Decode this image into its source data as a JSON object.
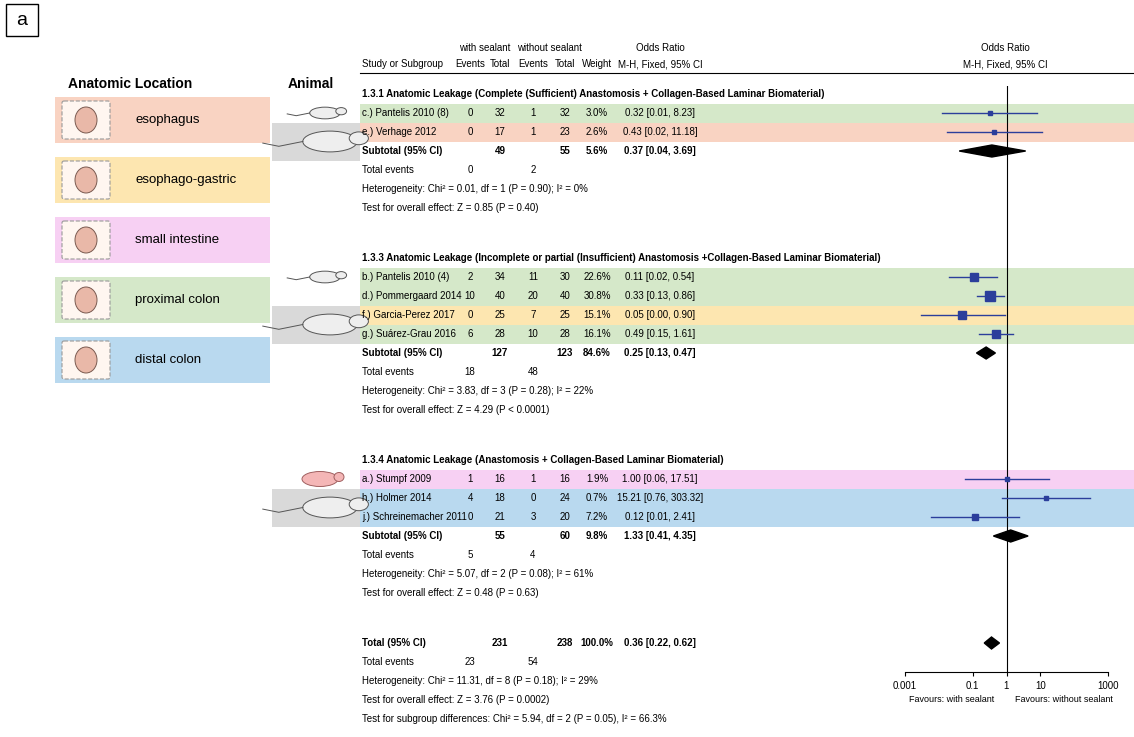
{
  "panel_label": "a",
  "anatomic_location": {
    "header": "Anatomic Location",
    "items": [
      {
        "name": "esophagus",
        "color": "#f9d3c2"
      },
      {
        "name": "esophago-gastric",
        "color": "#fde6b0"
      },
      {
        "name": "small intestine",
        "color": "#f7d0f3"
      },
      {
        "name": "proximal colon",
        "color": "#d5e8c9"
      },
      {
        "name": "distal colon",
        "color": "#b9d9ef"
      }
    ]
  },
  "animal_header": "Animal",
  "table_header": {
    "groups": [
      "with sealant",
      "without sealant",
      "Odds Ratio"
    ],
    "columns": [
      "Study or Subgroup",
      "Events",
      "Total",
      "Events",
      "Total",
      "Weight",
      "M-H, Fixed, 95% CI"
    ],
    "plot_header": [
      "Odds Ratio",
      "M-H, Fixed, 95% CI"
    ]
  },
  "chart_data": {
    "type": "forest",
    "log": "x",
    "xlim": [
      0.001,
      1000
    ],
    "xticks": [
      0.001,
      0.1,
      1,
      10,
      1000
    ],
    "null_line": 1,
    "color": "#2b3e9b",
    "favours": [
      "Favours: with sealant",
      "Favours: without sealant"
    ],
    "sections": [
      {
        "title": "1.3.1 Anatomic Leakage (Complete (Sufficient) Anastomosis + Collagen-Based Laminar Biomaterial)",
        "studies": [
          {
            "label": "c.) Pantelis 2010 (8)",
            "location": "proximal colon",
            "events_with": 0,
            "total_with": 32,
            "events_without": 1,
            "total_without": 32,
            "weight": 3.0,
            "weight_label": "3.0%",
            "or": 0.32,
            "ci": [
              0.012,
              8.23
            ],
            "or_label": "0.32 [0.01, 8.23]"
          },
          {
            "label": "e.) Verhage 2012",
            "location": "esophagus",
            "events_with": 0,
            "total_with": 17,
            "events_without": 1,
            "total_without": 23,
            "weight": 2.6,
            "weight_label": "2.6%",
            "or": 0.43,
            "ci": [
              0.017,
              11.18
            ],
            "or_label": "0.43 [0.02, 11.18]"
          }
        ],
        "subtotal": {
          "label": "Subtotal (95% CI)",
          "total_with": 49,
          "total_without": 55,
          "weight_label": "5.6%",
          "or": 0.37,
          "ci": [
            0.04,
            3.69
          ],
          "or_label": "0.37 [0.04, 3.69]"
        },
        "total_events": {
          "label": "Total events",
          "with": 0,
          "without": 2
        },
        "heterogeneity": "Heterogeneity: Chi² = 0.01, df = 1 (P = 0.90); I² = 0%",
        "overall_effect": "Test for overall effect: Z = 0.85 (P = 0.40)"
      },
      {
        "title": "1.3.3 Anatomic Leakage (Incomplete or partial (Insufficient) Anastomosis +Collagen-Based Laminar Biomaterial)",
        "studies": [
          {
            "label": "b.) Pantelis 2010 (4)",
            "location": "proximal colon",
            "events_with": 2,
            "total_with": 34,
            "events_without": 11,
            "total_without": 30,
            "weight": 22.6,
            "weight_label": "22.6%",
            "or": 0.11,
            "ci": [
              0.02,
              0.54
            ],
            "or_label": "0.11 [0.02, 0.54]"
          },
          {
            "label": "d.) Pommergaard 2014",
            "location": "proximal colon",
            "events_with": 10,
            "total_with": 40,
            "events_without": 20,
            "total_without": 40,
            "weight": 30.8,
            "weight_label": "30.8%",
            "or": 0.33,
            "ci": [
              0.13,
              0.86
            ],
            "or_label": "0.33 [0.13, 0.86]"
          },
          {
            "label": "f.) Garcia-Perez 2017",
            "location": "esophago-gastric",
            "events_with": 0,
            "total_with": 25,
            "events_without": 7,
            "total_without": 25,
            "weight": 15.1,
            "weight_label": "15.1%",
            "or": 0.05,
            "ci": [
              0.003,
              0.9
            ],
            "or_label": "0.05 [0.00, 0.90]"
          },
          {
            "label": "g.) Suárez-Grau 2016",
            "location": "proximal colon",
            "events_with": 6,
            "total_with": 28,
            "events_without": 10,
            "total_without": 28,
            "weight": 16.1,
            "weight_label": "16.1%",
            "or": 0.49,
            "ci": [
              0.15,
              1.61
            ],
            "or_label": "0.49 [0.15, 1.61]"
          }
        ],
        "subtotal": {
          "label": "Subtotal (95% CI)",
          "total_with": 127,
          "total_without": 123,
          "weight_label": "84.6%",
          "or": 0.25,
          "ci": [
            0.13,
            0.47
          ],
          "or_label": "0.25 [0.13, 0.47]"
        },
        "total_events": {
          "label": "Total events",
          "with": 18,
          "without": 48
        },
        "heterogeneity": "Heterogeneity: Chi² = 3.83, df = 3 (P = 0.28); I² = 22%",
        "overall_effect": "Test for overall effect: Z = 4.29 (P < 0.0001)"
      },
      {
        "title": "1.3.4 Anatomic Leakage (Anastomosis + Collagen-Based Laminar Biomaterial)",
        "studies": [
          {
            "label": "a.) Stumpf 2009",
            "location": "small intestine",
            "events_with": 1,
            "total_with": 16,
            "events_without": 1,
            "total_without": 16,
            "weight": 1.9,
            "weight_label": "1.9%",
            "or": 1.0,
            "ci": [
              0.06,
              17.51
            ],
            "or_label": "1.00 [0.06, 17.51]"
          },
          {
            "label": "h.) Holmer 2014",
            "location": "distal colon",
            "events_with": 4,
            "total_with": 18,
            "events_without": 0,
            "total_without": 24,
            "weight": 0.7,
            "weight_label": "0.7%",
            "or": 15.21,
            "ci": [
              0.76,
              303.32
            ],
            "or_label": "15.21 [0.76, 303.32]"
          },
          {
            "label": "j.) Schreinemacher 2011",
            "location": "distal colon",
            "events_with": 0,
            "total_with": 21,
            "events_without": 3,
            "total_without": 20,
            "weight": 7.2,
            "weight_label": "7.2%",
            "or": 0.12,
            "ci": [
              0.006,
              2.41
            ],
            "or_label": "0.12 [0.01, 2.41]"
          }
        ],
        "subtotal": {
          "label": "Subtotal (95% CI)",
          "total_with": 55,
          "total_without": 60,
          "weight_label": "9.8%",
          "or": 1.33,
          "ci": [
            0.41,
            4.35
          ],
          "or_label": "1.33 [0.41, 4.35]"
        },
        "total_events": {
          "label": "Total events",
          "with": 5,
          "without": 4
        },
        "heterogeneity": "Heterogeneity: Chi² = 5.07, df = 2 (P = 0.08); I² = 61%",
        "overall_effect": "Test for overall effect: Z = 0.48 (P = 0.63)"
      }
    ],
    "overall": {
      "label": "Total (95% CI)",
      "total_with": 231,
      "total_without": 238,
      "weight_label": "100.0%",
      "or": 0.36,
      "ci": [
        0.22,
        0.62
      ],
      "or_label": "0.36 [0.22, 0.62]",
      "total_events": {
        "label": "Total events",
        "with": 23,
        "without": 54
      },
      "heterogeneity": "Heterogeneity: Chi² = 11.31, df = 8 (P = 0.18); I² = 29%",
      "overall_effect": "Test for overall effect: Z = 3.76 (P = 0.0002)",
      "subgroup_differences": "Test for subgroup differences: Chi² = 5.94, df = 2 (P = 0.05), I² = 66.3%"
    }
  }
}
